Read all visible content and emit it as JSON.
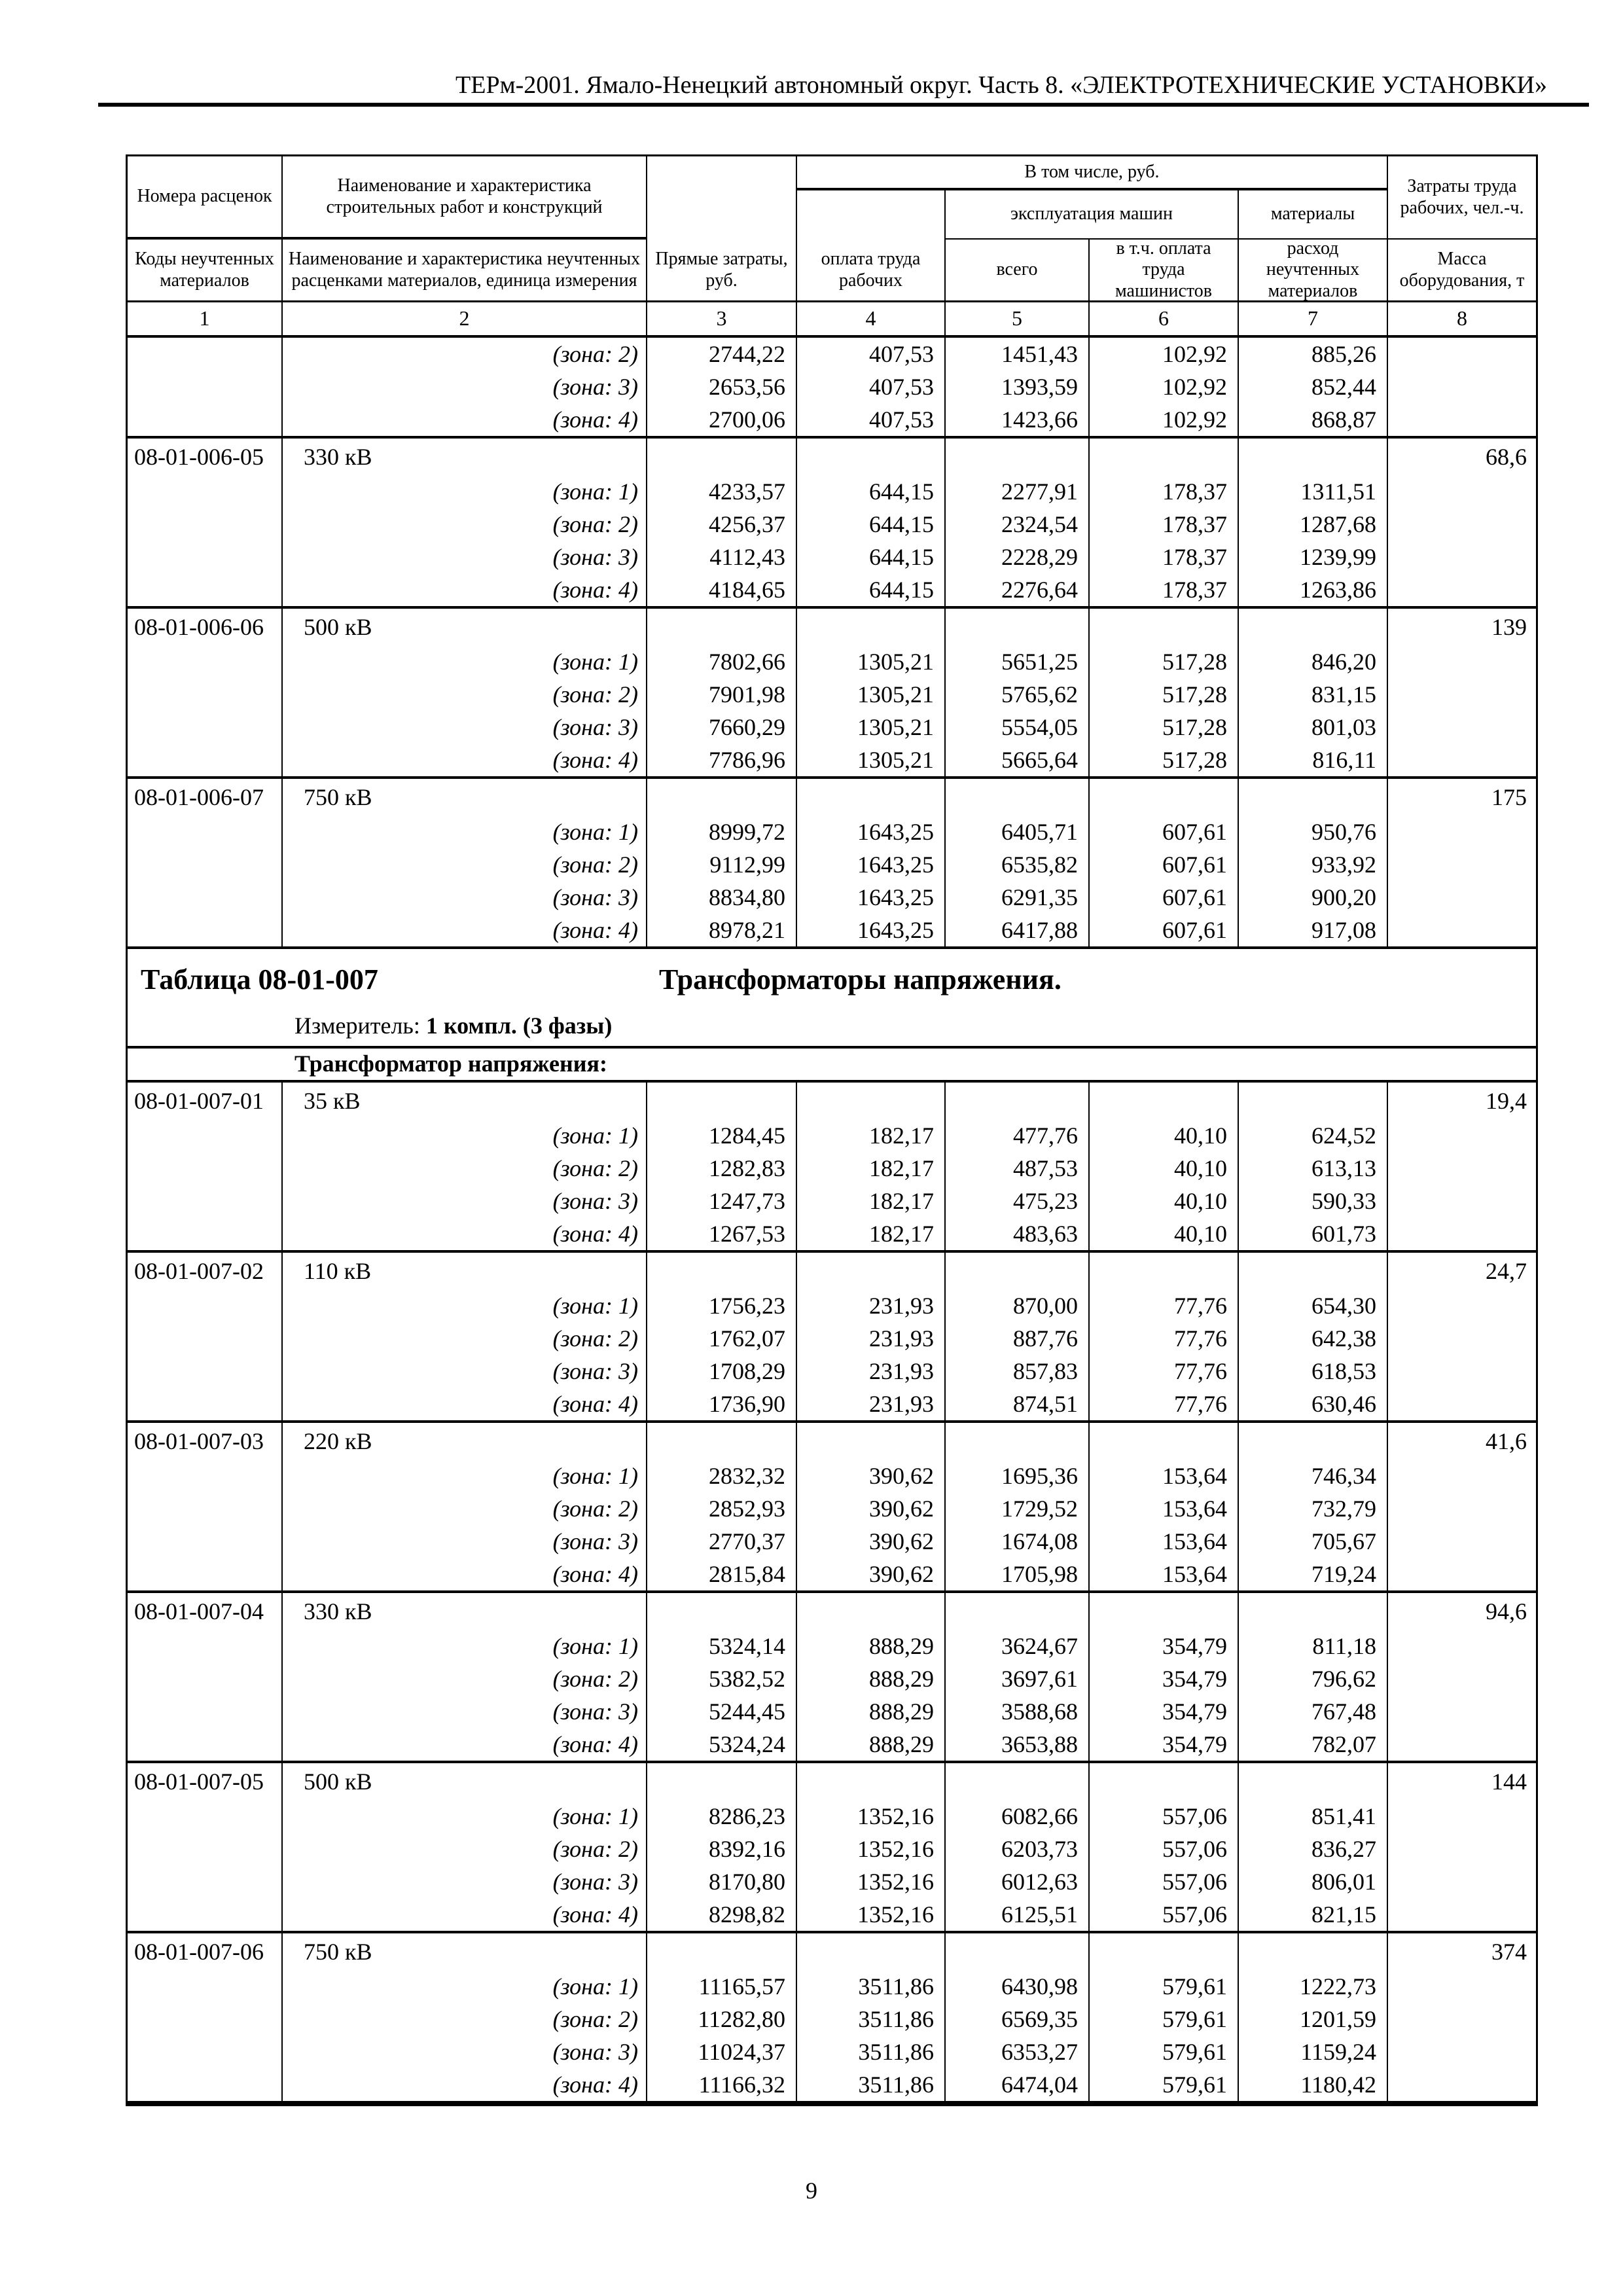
{
  "page": {
    "header_title": "ТЕРм-2001. Ямало-Ненецкий автономный округ. Часть 8. «ЭЛЕКТРОТЕХНИЧЕСКИЕ УСТАНОВКИ»",
    "page_number": "9"
  },
  "table": {
    "head": {
      "col1_top": "Номера расценок",
      "col1_bottom": "Коды неучтенных материалов",
      "col2_top": "Наименование и характеристика строительных работ и конструкций",
      "col2_bottom": "Наименование и характеристика неучтенных расценками материалов, единица измерения",
      "col3": "Прямые затраты, руб.",
      "group_incl": "В том числе, руб.",
      "col4": "оплата труда рабочих",
      "group_mach": "эксплуатация машин",
      "col5": "всего",
      "col6": "в т.ч. оплата труда машинистов",
      "col7_top": "материалы",
      "col7_bottom": "расход неучтенных материалов",
      "col8_top": "Затраты труда рабочих, чел.-ч.",
      "col8_bottom": "Масса оборудования, т",
      "numbers": [
        "1",
        "2",
        "3",
        "4",
        "5",
        "6",
        "7",
        "8"
      ]
    },
    "blocks": [
      {
        "type": "rows",
        "rows": [
          {
            "zone": "(зона: 2)",
            "direct": "2744,22",
            "labor": "407,53",
            "total": "1451,43",
            "mach": "102,92",
            "materials": "885,26"
          },
          {
            "zone": "(зона: 3)",
            "direct": "2653,56",
            "labor": "407,53",
            "total": "1393,59",
            "mach": "102,92",
            "materials": "852,44"
          },
          {
            "zone": "(зона: 4)",
            "direct": "2700,06",
            "labor": "407,53",
            "total": "1423,66",
            "mach": "102,92",
            "materials": "868,87"
          }
        ]
      },
      {
        "type": "group",
        "code": "08-01-006-05",
        "name": "330 кВ",
        "mass": "68,6",
        "rows": [
          {
            "zone": "(зона: 1)",
            "direct": "4233,57",
            "labor": "644,15",
            "total": "2277,91",
            "mach": "178,37",
            "materials": "1311,51"
          },
          {
            "zone": "(зона: 2)",
            "direct": "4256,37",
            "labor": "644,15",
            "total": "2324,54",
            "mach": "178,37",
            "materials": "1287,68"
          },
          {
            "zone": "(зона: 3)",
            "direct": "4112,43",
            "labor": "644,15",
            "total": "2228,29",
            "mach": "178,37",
            "materials": "1239,99"
          },
          {
            "zone": "(зона: 4)",
            "direct": "4184,65",
            "labor": "644,15",
            "total": "2276,64",
            "mach": "178,37",
            "materials": "1263,86"
          }
        ]
      },
      {
        "type": "group",
        "code": "08-01-006-06",
        "name": "500 кВ",
        "mass": "139",
        "rows": [
          {
            "zone": "(зона: 1)",
            "direct": "7802,66",
            "labor": "1305,21",
            "total": "5651,25",
            "mach": "517,28",
            "materials": "846,20"
          },
          {
            "zone": "(зона: 2)",
            "direct": "7901,98",
            "labor": "1305,21",
            "total": "5765,62",
            "mach": "517,28",
            "materials": "831,15"
          },
          {
            "zone": "(зона: 3)",
            "direct": "7660,29",
            "labor": "1305,21",
            "total": "5554,05",
            "mach": "517,28",
            "materials": "801,03"
          },
          {
            "zone": "(зона: 4)",
            "direct": "7786,96",
            "labor": "1305,21",
            "total": "5665,64",
            "mach": "517,28",
            "materials": "816,11"
          }
        ]
      },
      {
        "type": "group",
        "code": "08-01-006-07",
        "name": "750 кВ",
        "mass": "175",
        "rows": [
          {
            "zone": "(зона: 1)",
            "direct": "8999,72",
            "labor": "1643,25",
            "total": "6405,71",
            "mach": "607,61",
            "materials": "950,76"
          },
          {
            "zone": "(зона: 2)",
            "direct": "9112,99",
            "labor": "1643,25",
            "total": "6535,82",
            "mach": "607,61",
            "materials": "933,92"
          },
          {
            "zone": "(зона: 3)",
            "direct": "8834,80",
            "labor": "1643,25",
            "total": "6291,35",
            "mach": "607,61",
            "materials": "900,20"
          },
          {
            "zone": "(зона: 4)",
            "direct": "8978,21",
            "labor": "1643,25",
            "total": "6417,88",
            "mach": "607,61",
            "materials": "917,08"
          }
        ]
      },
      {
        "type": "section",
        "label": "Таблица 08-01-007",
        "title": "Трансформаторы напряжения.",
        "meter_label": "Измеритель:",
        "meter_value": "1 компл. (3 фазы)"
      },
      {
        "type": "subheading",
        "text": "Трансформатор напряжения:"
      },
      {
        "type": "group",
        "code": "08-01-007-01",
        "name": "35 кВ",
        "mass": "19,4",
        "rows": [
          {
            "zone": "(зона: 1)",
            "direct": "1284,45",
            "labor": "182,17",
            "total": "477,76",
            "mach": "40,10",
            "materials": "624,52"
          },
          {
            "zone": "(зона: 2)",
            "direct": "1282,83",
            "labor": "182,17",
            "total": "487,53",
            "mach": "40,10",
            "materials": "613,13"
          },
          {
            "zone": "(зона: 3)",
            "direct": "1247,73",
            "labor": "182,17",
            "total": "475,23",
            "mach": "40,10",
            "materials": "590,33"
          },
          {
            "zone": "(зона: 4)",
            "direct": "1267,53",
            "labor": "182,17",
            "total": "483,63",
            "mach": "40,10",
            "materials": "601,73"
          }
        ]
      },
      {
        "type": "group",
        "code": "08-01-007-02",
        "name": "110 кВ",
        "mass": "24,7",
        "rows": [
          {
            "zone": "(зона: 1)",
            "direct": "1756,23",
            "labor": "231,93",
            "total": "870,00",
            "mach": "77,76",
            "materials": "654,30"
          },
          {
            "zone": "(зона: 2)",
            "direct": "1762,07",
            "labor": "231,93",
            "total": "887,76",
            "mach": "77,76",
            "materials": "642,38"
          },
          {
            "zone": "(зона: 3)",
            "direct": "1708,29",
            "labor": "231,93",
            "total": "857,83",
            "mach": "77,76",
            "materials": "618,53"
          },
          {
            "zone": "(зона: 4)",
            "direct": "1736,90",
            "labor": "231,93",
            "total": "874,51",
            "mach": "77,76",
            "materials": "630,46"
          }
        ]
      },
      {
        "type": "group",
        "code": "08-01-007-03",
        "name": "220 кВ",
        "mass": "41,6",
        "rows": [
          {
            "zone": "(зона: 1)",
            "direct": "2832,32",
            "labor": "390,62",
            "total": "1695,36",
            "mach": "153,64",
            "materials": "746,34"
          },
          {
            "zone": "(зона: 2)",
            "direct": "2852,93",
            "labor": "390,62",
            "total": "1729,52",
            "mach": "153,64",
            "materials": "732,79"
          },
          {
            "zone": "(зона: 3)",
            "direct": "2770,37",
            "labor": "390,62",
            "total": "1674,08",
            "mach": "153,64",
            "materials": "705,67"
          },
          {
            "zone": "(зона: 4)",
            "direct": "2815,84",
            "labor": "390,62",
            "total": "1705,98",
            "mach": "153,64",
            "materials": "719,24"
          }
        ]
      },
      {
        "type": "group",
        "code": "08-01-007-04",
        "name": "330 кВ",
        "mass": "94,6",
        "rows": [
          {
            "zone": "(зона: 1)",
            "direct": "5324,14",
            "labor": "888,29",
            "total": "3624,67",
            "mach": "354,79",
            "materials": "811,18"
          },
          {
            "zone": "(зона: 2)",
            "direct": "5382,52",
            "labor": "888,29",
            "total": "3697,61",
            "mach": "354,79",
            "materials": "796,62"
          },
          {
            "zone": "(зона: 3)",
            "direct": "5244,45",
            "labor": "888,29",
            "total": "3588,68",
            "mach": "354,79",
            "materials": "767,48"
          },
          {
            "zone": "(зона: 4)",
            "direct": "5324,24",
            "labor": "888,29",
            "total": "3653,88",
            "mach": "354,79",
            "materials": "782,07"
          }
        ]
      },
      {
        "type": "group",
        "code": "08-01-007-05",
        "name": "500 кВ",
        "mass": "144",
        "rows": [
          {
            "zone": "(зона: 1)",
            "direct": "8286,23",
            "labor": "1352,16",
            "total": "6082,66",
            "mach": "557,06",
            "materials": "851,41"
          },
          {
            "zone": "(зона: 2)",
            "direct": "8392,16",
            "labor": "1352,16",
            "total": "6203,73",
            "mach": "557,06",
            "materials": "836,27"
          },
          {
            "zone": "(зона: 3)",
            "direct": "8170,80",
            "labor": "1352,16",
            "total": "6012,63",
            "mach": "557,06",
            "materials": "806,01"
          },
          {
            "zone": "(зона: 4)",
            "direct": "8298,82",
            "labor": "1352,16",
            "total": "6125,51",
            "mach": "557,06",
            "materials": "821,15"
          }
        ]
      },
      {
        "type": "group",
        "code": "08-01-007-06",
        "name": "750 кВ",
        "mass": "374",
        "rows": [
          {
            "zone": "(зона: 1)",
            "direct": "11165,57",
            "labor": "3511,86",
            "total": "6430,98",
            "mach": "579,61",
            "materials": "1222,73"
          },
          {
            "zone": "(зона: 2)",
            "direct": "11282,80",
            "labor": "3511,86",
            "total": "6569,35",
            "mach": "579,61",
            "materials": "1201,59"
          },
          {
            "zone": "(зона: 3)",
            "direct": "11024,37",
            "labor": "3511,86",
            "total": "6353,27",
            "mach": "579,61",
            "materials": "1159,24"
          },
          {
            "zone": "(зона: 4)",
            "direct": "11166,32",
            "labor": "3511,86",
            "total": "6474,04",
            "mach": "579,61",
            "materials": "1180,42"
          }
        ]
      }
    ]
  }
}
